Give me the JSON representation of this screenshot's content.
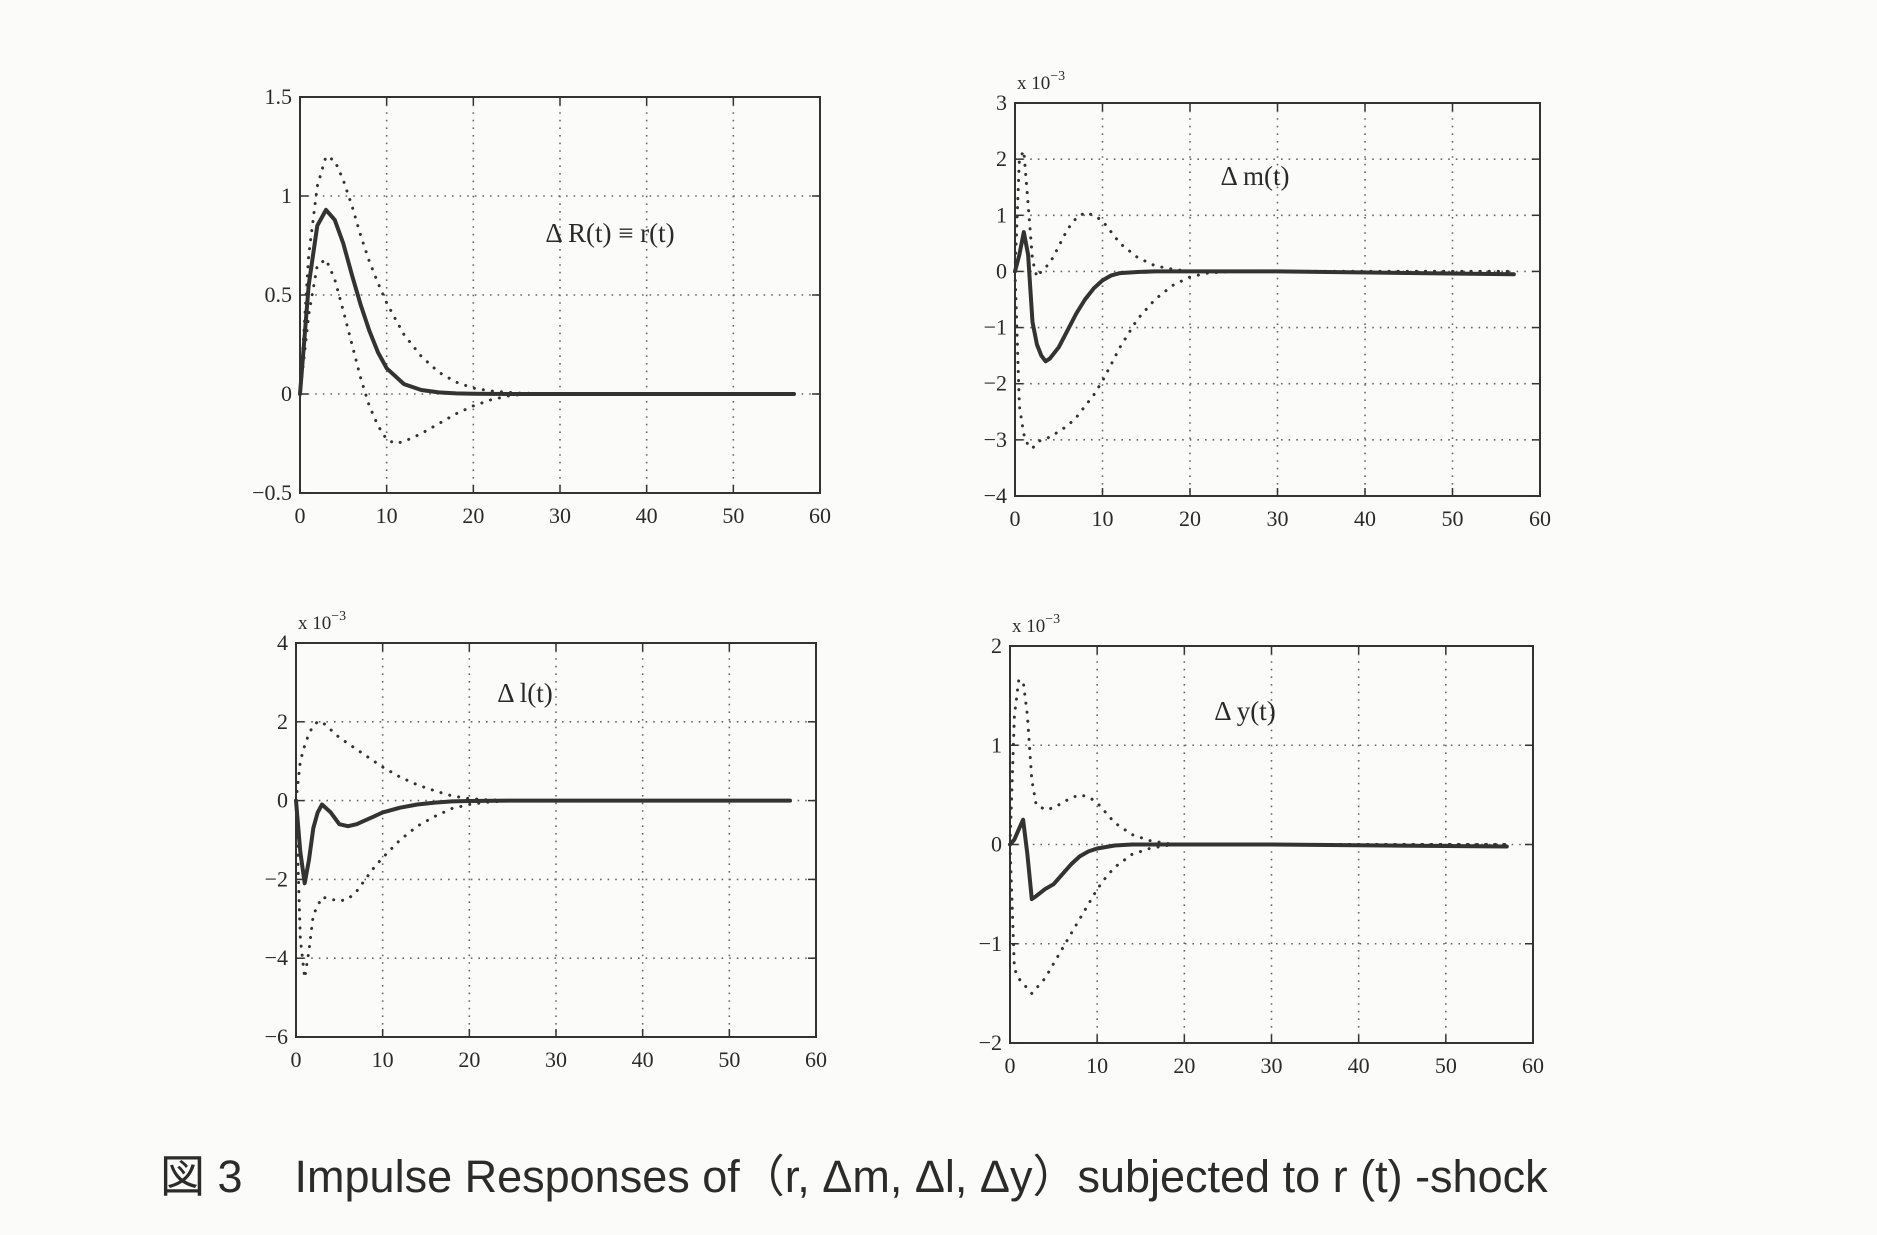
{
  "caption": {
    "number": "図 3",
    "text": "Impulse Responses of（r,  Δm,  Δl,  Δy）subjected to r (t) -shock"
  },
  "colors": {
    "line": "#333333",
    "grid": "#666666",
    "background": "#fbfbf9"
  },
  "chart_data": [
    {
      "type": "line",
      "annotation": "Δ R(t) ≡ r(t)",
      "xlim": [
        0,
        60
      ],
      "ylim": [
        -0.5,
        1.5
      ],
      "xticks": [
        0,
        10,
        20,
        30,
        40,
        50,
        60
      ],
      "xtick_labels": [
        "0",
        "10",
        "20",
        "30",
        "40",
        "50",
        "60"
      ],
      "yticks": [
        -0.5,
        0,
        0.5,
        1,
        1.5
      ],
      "ytick_labels": [
        "−0.5",
        "0",
        "0.5",
        "1",
        "1.5"
      ],
      "multiplier": "",
      "grid": true,
      "series": [
        {
          "style": "solid",
          "x": [
            0,
            1,
            2,
            3,
            4,
            5,
            6,
            7,
            8,
            9,
            10,
            12,
            14,
            16,
            18,
            20,
            25,
            30,
            40,
            57
          ],
          "y": [
            0,
            0.55,
            0.85,
            0.93,
            0.88,
            0.76,
            0.6,
            0.45,
            0.32,
            0.21,
            0.13,
            0.05,
            0.02,
            0.008,
            0.003,
            0.001,
            0,
            0,
            0,
            0
          ]
        },
        {
          "style": "dotted",
          "x": [
            0,
            1,
            2,
            3,
            4,
            5,
            6,
            7,
            8,
            9,
            10,
            11,
            12,
            14,
            16,
            18,
            20,
            22,
            25,
            30,
            40,
            57
          ],
          "y": [
            0,
            0.7,
            1.05,
            1.2,
            1.18,
            1.08,
            0.95,
            0.8,
            0.67,
            0.56,
            0.46,
            0.38,
            0.3,
            0.19,
            0.11,
            0.06,
            0.03,
            0.015,
            0.005,
            0,
            0,
            0
          ]
        },
        {
          "style": "dotted",
          "x": [
            0,
            1,
            2,
            3,
            4,
            5,
            6,
            7,
            8,
            9,
            10,
            11,
            12,
            14,
            16,
            18,
            20,
            22,
            24,
            26,
            30,
            40,
            57
          ],
          "y": [
            0,
            0.4,
            0.65,
            0.68,
            0.58,
            0.42,
            0.25,
            0.08,
            -0.06,
            -0.16,
            -0.23,
            -0.25,
            -0.24,
            -0.2,
            -0.15,
            -0.1,
            -0.06,
            -0.03,
            -0.01,
            0,
            0,
            0,
            0
          ]
        }
      ]
    },
    {
      "type": "line",
      "annotation": "Δ m(t)",
      "xlim": [
        0,
        60
      ],
      "ylim": [
        -4,
        3
      ],
      "xticks": [
        0,
        10,
        20,
        30,
        40,
        50,
        60
      ],
      "xtick_labels": [
        "0",
        "10",
        "20",
        "30",
        "40",
        "50",
        "60"
      ],
      "yticks": [
        -4,
        -3,
        -2,
        -1,
        0,
        1,
        2,
        3
      ],
      "ytick_labels": [
        "−4",
        "−3",
        "−2",
        "−1",
        "0",
        "1",
        "2",
        "3"
      ],
      "multiplier": "x 10−3",
      "grid": true,
      "series": [
        {
          "style": "solid",
          "x": [
            0,
            0.5,
            1,
            1.5,
            2,
            2.5,
            3,
            3.5,
            4,
            5,
            6,
            7,
            8,
            9,
            10,
            11,
            12,
            14,
            16,
            18,
            20,
            30,
            57
          ],
          "y": [
            0,
            0.3,
            0.7,
            0.3,
            -0.9,
            -1.3,
            -1.5,
            -1.6,
            -1.55,
            -1.35,
            -1.05,
            -0.75,
            -0.5,
            -0.3,
            -0.16,
            -0.07,
            -0.03,
            -0.01,
            0,
            0,
            0,
            0,
            -0.05
          ]
        },
        {
          "style": "dotted",
          "x": [
            0,
            0.5,
            1,
            1.5,
            2,
            2.5,
            3,
            4,
            5,
            6,
            7,
            8,
            9,
            10,
            11,
            12,
            14,
            16,
            18,
            20,
            25,
            30,
            57
          ],
          "y": [
            0,
            2.0,
            2.15,
            1.2,
            0.2,
            -0.1,
            0,
            0.15,
            0.45,
            0.75,
            0.95,
            1.05,
            1.0,
            0.9,
            0.7,
            0.5,
            0.25,
            0.1,
            0.04,
            0,
            0,
            0,
            0
          ]
        },
        {
          "style": "dotted",
          "x": [
            0,
            0.5,
            1,
            1.5,
            2,
            2.5,
            3,
            4,
            5,
            6,
            7,
            8,
            9,
            10,
            11,
            12,
            14,
            16,
            18,
            20,
            22,
            25,
            30,
            57
          ],
          "y": [
            0,
            -2.4,
            -2.9,
            -3.1,
            -3.15,
            -3.05,
            -3.0,
            -2.95,
            -2.85,
            -2.75,
            -2.6,
            -2.4,
            -2.2,
            -1.95,
            -1.65,
            -1.35,
            -0.85,
            -0.5,
            -0.25,
            -0.1,
            -0.03,
            0,
            0,
            0
          ]
        }
      ]
    },
    {
      "type": "line",
      "annotation": "Δ l(t)",
      "xlim": [
        0,
        60
      ],
      "ylim": [
        -6,
        4
      ],
      "xticks": [
        0,
        10,
        20,
        30,
        40,
        50,
        60
      ],
      "xtick_labels": [
        "0",
        "10",
        "20",
        "30",
        "40",
        "50",
        "60"
      ],
      "yticks": [
        -6,
        -4,
        -2,
        0,
        2,
        4
      ],
      "ytick_labels": [
        "−6",
        "−4",
        "−2",
        "0",
        "2",
        "4"
      ],
      "multiplier": "x 10−3",
      "grid": true,
      "series": [
        {
          "style": "solid",
          "x": [
            0,
            0.5,
            1,
            1.5,
            2,
            2.5,
            3,
            4,
            5,
            6,
            7,
            8,
            9,
            10,
            12,
            14,
            16,
            18,
            20,
            25,
            30,
            57
          ],
          "y": [
            0,
            -1.3,
            -2.1,
            -1.5,
            -0.7,
            -0.3,
            -0.1,
            -0.3,
            -0.6,
            -0.65,
            -0.6,
            -0.5,
            -0.4,
            -0.3,
            -0.18,
            -0.1,
            -0.05,
            -0.02,
            -0.01,
            0,
            0,
            0
          ]
        },
        {
          "style": "dotted",
          "x": [
            0,
            0.5,
            1,
            1.5,
            2,
            2.5,
            3,
            4,
            5,
            6,
            8,
            10,
            12,
            14,
            16,
            18,
            20,
            22,
            25,
            30,
            57
          ],
          "y": [
            0,
            1.0,
            1.4,
            1.7,
            1.9,
            2.0,
            2.0,
            1.8,
            1.6,
            1.45,
            1.15,
            0.85,
            0.6,
            0.4,
            0.25,
            0.12,
            0.05,
            0.02,
            0,
            0,
            0
          ]
        },
        {
          "style": "dotted",
          "x": [
            0,
            0.5,
            1,
            1.5,
            2,
            3,
            4,
            5,
            6,
            7,
            8,
            9,
            10,
            12,
            14,
            16,
            18,
            20,
            22,
            25,
            30,
            57
          ],
          "y": [
            0,
            -3.5,
            -4.5,
            -3.8,
            -2.9,
            -2.45,
            -2.5,
            -2.55,
            -2.5,
            -2.3,
            -2.0,
            -1.7,
            -1.45,
            -1.0,
            -0.65,
            -0.4,
            -0.2,
            -0.1,
            -0.04,
            0,
            0,
            0
          ]
        }
      ]
    },
    {
      "type": "line",
      "annotation": "Δ y(t)",
      "xlim": [
        0,
        60
      ],
      "ylim": [
        -2,
        2
      ],
      "xticks": [
        0,
        10,
        20,
        30,
        40,
        50,
        60
      ],
      "xtick_labels": [
        "0",
        "10",
        "20",
        "30",
        "40",
        "50",
        "60"
      ],
      "yticks": [
        -2,
        -1,
        0,
        1,
        2
      ],
      "ytick_labels": [
        "−2",
        "−1",
        "0",
        "1",
        "2"
      ],
      "multiplier": "x 10−3",
      "grid": true,
      "series": [
        {
          "style": "solid",
          "x": [
            0,
            0.5,
            1,
            1.5,
            2,
            2.5,
            3,
            4,
            5,
            6,
            7,
            8,
            9,
            10,
            12,
            14,
            16,
            18,
            20,
            30,
            57
          ],
          "y": [
            0,
            0.05,
            0.15,
            0.25,
            -0.1,
            -0.55,
            -0.52,
            -0.45,
            -0.4,
            -0.3,
            -0.2,
            -0.12,
            -0.07,
            -0.04,
            -0.01,
            0,
            0,
            0,
            0,
            0,
            -0.02
          ]
        },
        {
          "style": "dotted",
          "x": [
            0,
            0.5,
            1,
            1.5,
            2,
            2.5,
            3,
            3.5,
            4,
            5,
            6,
            7,
            8,
            9,
            10,
            11,
            12,
            14,
            16,
            18,
            20,
            25,
            30,
            57
          ],
          "y": [
            0,
            1.3,
            1.65,
            1.65,
            1.3,
            0.65,
            0.4,
            0.38,
            0.35,
            0.37,
            0.42,
            0.47,
            0.5,
            0.48,
            0.42,
            0.32,
            0.22,
            0.1,
            0.04,
            0.01,
            0,
            0,
            0,
            0
          ]
        },
        {
          "style": "dotted",
          "x": [
            0,
            0.5,
            1,
            1.5,
            2,
            2.5,
            3,
            4,
            5,
            6,
            7,
            8,
            9,
            10,
            11,
            12,
            14,
            16,
            18,
            20,
            22,
            25,
            30,
            57
          ],
          "y": [
            0,
            -1.25,
            -1.35,
            -1.4,
            -1.45,
            -1.5,
            -1.45,
            -1.35,
            -1.2,
            -1.05,
            -0.9,
            -0.75,
            -0.6,
            -0.45,
            -0.33,
            -0.23,
            -0.1,
            -0.04,
            -0.01,
            0,
            0,
            0,
            0,
            0
          ]
        }
      ]
    }
  ]
}
